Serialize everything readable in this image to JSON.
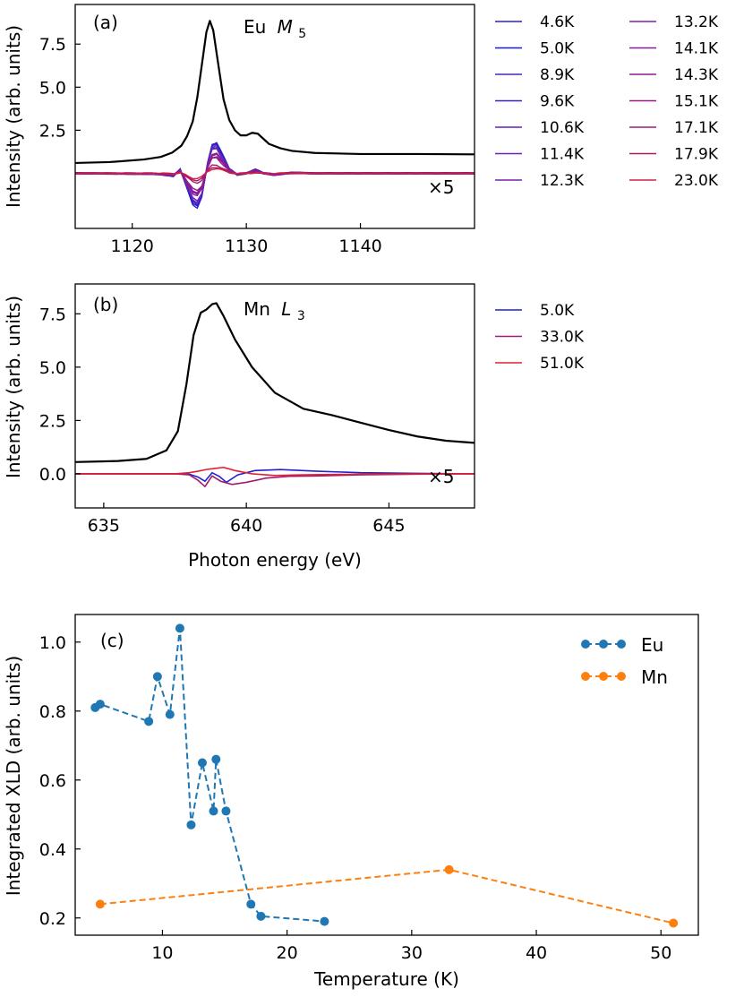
{
  "chart_data": [
    {
      "type": "line",
      "panel": "(a)",
      "title": "Eu M5",
      "title_parts": {
        "element": "Eu",
        "edge_letter": "M",
        "edge_sub": "5"
      },
      "xlabel": "",
      "ylabel": "Intensity (arb. units)",
      "xlim": [
        1115,
        1150
      ],
      "ylim": [
        -3.2,
        9.8
      ],
      "xticks": [
        1120,
        1130,
        1140
      ],
      "xtick_labels": [
        "1120",
        "1130",
        "1140"
      ],
      "yticks": [
        2.5,
        5.0,
        7.5
      ],
      "ytick_labels": [
        "2.5",
        "5.0",
        "7.5"
      ],
      "annotation": "×5",
      "legend_columns": 2,
      "xas": {
        "color": "#000000",
        "x": [
          1115,
          1118,
          1121,
          1122.5,
          1123.5,
          1124.3,
          1124.8,
          1125.3,
          1125.7,
          1126.1,
          1126.5,
          1126.8,
          1127.1,
          1127.5,
          1128,
          1128.5,
          1129,
          1129.5,
          1130,
          1130.5,
          1131,
          1131.5,
          1132,
          1133,
          1134,
          1136,
          1140,
          1145,
          1150
        ],
        "y": [
          0.6,
          0.65,
          0.8,
          0.95,
          1.2,
          1.6,
          2.15,
          3.0,
          4.4,
          6.3,
          8.2,
          8.85,
          8.3,
          6.5,
          4.3,
          3.1,
          2.5,
          2.2,
          2.2,
          2.35,
          2.3,
          2.0,
          1.7,
          1.45,
          1.3,
          1.18,
          1.12,
          1.12,
          1.1
        ]
      },
      "xld_x": [
        1115,
        1122,
        1123.6,
        1124.2,
        1124.8,
        1125.3,
        1125.7,
        1126.1,
        1126.6,
        1127.0,
        1127.4,
        1127.9,
        1128.5,
        1129.2,
        1130.0,
        1130.8,
        1131.5,
        1132.5,
        1134,
        1136,
        1140,
        1150
      ],
      "xld_shape": [
        0,
        -0.02,
        -0.08,
        0.12,
        -0.45,
        -0.9,
        -1.0,
        -0.7,
        0.3,
        0.85,
        0.9,
        0.55,
        0.15,
        -0.05,
        0.0,
        0.12,
        0.0,
        -0.05,
        0.02,
        0.0,
        0.0,
        0.0
      ],
      "series": [
        {
          "name": "4.6K",
          "color": "#2a22c8",
          "amplitude": 2.0
        },
        {
          "name": "5.0K",
          "color": "#1a1ad0",
          "amplitude": 1.9
        },
        {
          "name": "8.9K",
          "color": "#4a24c0",
          "amplitude": 1.75
        },
        {
          "name": "9.6K",
          "color": "#3422c4",
          "amplitude": 1.85
        },
        {
          "name": "10.6K",
          "color": "#5a20b8",
          "amplitude": 1.6
        },
        {
          "name": "11.4K",
          "color": "#6e20ba",
          "amplitude": 1.7
        },
        {
          "name": "12.3K",
          "color": "#7a1eb2",
          "amplitude": 1.1
        },
        {
          "name": "13.2K",
          "color": "#7e1ea6",
          "amplitude": 1.3
        },
        {
          "name": "14.1K",
          "color": "#861c98",
          "amplitude": 1.2
        },
        {
          "name": "14.3K",
          "color": "#8e1c8e",
          "amplitude": 1.25
        },
        {
          "name": "15.1K",
          "color": "#961a84",
          "amplitude": 1.0
        },
        {
          "name": "17.1K",
          "color": "#a01a70",
          "amplitude": 0.55
        },
        {
          "name": "17.9K",
          "color": "#aa1c60",
          "amplitude": 0.4
        },
        {
          "name": "23.0K",
          "color": "#d22040",
          "amplitude": 0.3
        }
      ]
    },
    {
      "type": "line",
      "panel": "(b)",
      "title": "Mn L3",
      "title_parts": {
        "element": "Mn",
        "edge_letter": "L",
        "edge_sub": "3"
      },
      "xlabel": "Photon energy (eV)",
      "ylabel": "Intensity (arb. units)",
      "xlim": [
        634,
        648
      ],
      "ylim": [
        -1.6,
        8.9
      ],
      "xticks": [
        635,
        640,
        645
      ],
      "xtick_labels": [
        "635",
        "640",
        "645"
      ],
      "yticks": [
        0.0,
        2.5,
        5.0,
        7.5
      ],
      "ytick_labels": [
        "0.0",
        "2.5",
        "5.0",
        "7.5"
      ],
      "annotation": "×5",
      "legend_columns": 1,
      "xas": {
        "color": "#000000",
        "x": [
          634,
          635.5,
          636.5,
          637.2,
          637.6,
          637.9,
          638.15,
          638.4,
          638.6,
          638.8,
          638.95,
          639.2,
          639.6,
          640.2,
          641,
          642,
          643,
          644,
          645,
          646,
          647,
          648
        ],
        "y": [
          0.55,
          0.6,
          0.7,
          1.1,
          2.0,
          4.2,
          6.5,
          7.55,
          7.7,
          7.95,
          8.0,
          7.4,
          6.3,
          5.0,
          3.8,
          3.05,
          2.75,
          2.4,
          2.05,
          1.75,
          1.55,
          1.45
        ]
      },
      "series": [
        {
          "name": "5.0K",
          "color": "#2020d0",
          "x": [
            634,
            637.5,
            638.0,
            638.3,
            638.55,
            638.8,
            639.05,
            639.3,
            639.7,
            640.3,
            641.2,
            642.5,
            644,
            646,
            648
          ],
          "y": [
            0.0,
            0.0,
            -0.02,
            -0.15,
            -0.35,
            0.05,
            -0.12,
            -0.4,
            -0.05,
            0.15,
            0.2,
            0.12,
            0.05,
            0.02,
            0.0
          ]
        },
        {
          "name": "33.0K",
          "color": "#a01a70",
          "x": [
            634,
            637.5,
            638.0,
            638.3,
            638.55,
            638.8,
            639.1,
            639.5,
            640.0,
            640.7,
            641.5,
            642.5,
            644,
            646,
            648
          ],
          "y": [
            0.0,
            0.0,
            -0.05,
            -0.3,
            -0.6,
            -0.1,
            -0.35,
            -0.5,
            -0.4,
            -0.2,
            -0.12,
            -0.1,
            -0.05,
            -0.02,
            0.0
          ]
        },
        {
          "name": "51.0K",
          "color": "#e02030",
          "x": [
            634,
            637.5,
            638.0,
            638.3,
            638.6,
            638.9,
            639.2,
            639.6,
            640.2,
            641,
            642,
            644,
            648
          ],
          "y": [
            0.0,
            0.0,
            0.05,
            0.12,
            0.2,
            0.25,
            0.3,
            0.15,
            0.0,
            -0.08,
            -0.05,
            -0.02,
            0.0
          ]
        }
      ]
    },
    {
      "type": "line",
      "panel": "(c)",
      "title": "",
      "xlabel": "Temperature (K)",
      "ylabel": "Integrated XLD (arb. units)",
      "xlim": [
        3,
        53
      ],
      "ylim": [
        0.15,
        1.08
      ],
      "xticks": [
        10,
        20,
        30,
        40,
        50
      ],
      "xtick_labels": [
        "10",
        "20",
        "30",
        "40",
        "50"
      ],
      "yticks": [
        0.2,
        0.4,
        0.6,
        0.8,
        1.0
      ],
      "ytick_labels": [
        "0.2",
        "0.4",
        "0.6",
        "0.8",
        "1.0"
      ],
      "legend_position": "top-right",
      "series": [
        {
          "name": "Eu",
          "color": "#1f77b4",
          "style": "dashed",
          "marker": "circle",
          "x": [
            4.6,
            5.0,
            8.9,
            9.6,
            10.6,
            11.4,
            12.3,
            13.2,
            14.1,
            14.3,
            15.1,
            17.1,
            17.9,
            23.0
          ],
          "y": [
            0.81,
            0.82,
            0.77,
            0.9,
            0.79,
            1.04,
            0.47,
            0.65,
            0.51,
            0.66,
            0.51,
            0.24,
            0.205,
            0.19
          ]
        },
        {
          "name": "Mn",
          "color": "#ff7f0e",
          "style": "dashed",
          "marker": "circle",
          "x": [
            5.0,
            33.0,
            51.0
          ],
          "y": [
            0.24,
            0.34,
            0.185
          ]
        }
      ]
    }
  ]
}
